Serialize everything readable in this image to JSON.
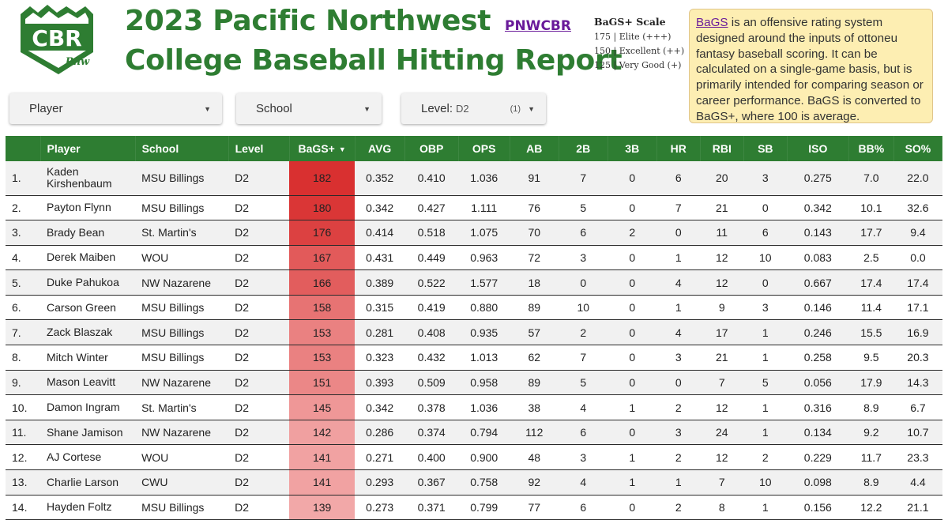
{
  "header": {
    "title_line1": "2023 Pacific Northwest",
    "title_line2": "College Baseball Hitting Report",
    "link_text": "PNWCBR",
    "logo_text": "CBR",
    "logo_sub": "Pnw"
  },
  "scale": {
    "title": "BaGS+ Scale",
    "lines": [
      "175 | Elite (+++)",
      "150 | Excellent (++)",
      "125 | Very Good (+)"
    ]
  },
  "info": {
    "term": "BaGS",
    "text": " is an offensive rating system designed around the inputs of ottoneu fantasy baseball scoring. It can be calculated on a single-game basis, but is primarily intended for comparing season or career performance. BaGS is converted to BaGS+, where 100 is average."
  },
  "filters": {
    "player": "Player",
    "school": "School",
    "level_label": "Level:",
    "level_value": "D2",
    "level_count": "(1)"
  },
  "table": {
    "headers": [
      "",
      "Player",
      "School",
      "Level",
      "BaGS+",
      "AVG",
      "OBP",
      "OPS",
      "AB",
      "2B",
      "3B",
      "HR",
      "RBI",
      "SB",
      "ISO",
      "BB%",
      "SO%"
    ],
    "rows": [
      [
        "1.",
        "Kaden Kirshenbaum",
        "MSU Billings",
        "D2",
        "182",
        "0.352",
        "0.410",
        "1.036",
        "91",
        "7",
        "0",
        "6",
        "20",
        "3",
        "0.275",
        "7.0",
        "22.0"
      ],
      [
        "2.",
        "Payton Flynn",
        "MSU Billings",
        "D2",
        "180",
        "0.342",
        "0.427",
        "1.111",
        "76",
        "5",
        "0",
        "7",
        "21",
        "0",
        "0.342",
        "10.1",
        "32.6"
      ],
      [
        "3.",
        "Brady Bean",
        "St. Martin's",
        "D2",
        "176",
        "0.414",
        "0.518",
        "1.075",
        "70",
        "6",
        "2",
        "0",
        "11",
        "6",
        "0.143",
        "17.7",
        "9.4"
      ],
      [
        "4.",
        "Derek Maiben",
        "WOU",
        "D2",
        "167",
        "0.431",
        "0.449",
        "0.963",
        "72",
        "3",
        "0",
        "1",
        "12",
        "10",
        "0.083",
        "2.5",
        "0.0"
      ],
      [
        "5.",
        "Duke Pahukoa",
        "NW Nazarene",
        "D2",
        "166",
        "0.389",
        "0.522",
        "1.577",
        "18",
        "0",
        "0",
        "4",
        "12",
        "0",
        "0.667",
        "17.4",
        "17.4"
      ],
      [
        "6.",
        "Carson Green",
        "MSU Billings",
        "D2",
        "158",
        "0.315",
        "0.419",
        "0.880",
        "89",
        "10",
        "0",
        "1",
        "9",
        "3",
        "0.146",
        "11.4",
        "17.1"
      ],
      [
        "7.",
        "Zack Blaszak",
        "MSU Billings",
        "D2",
        "153",
        "0.281",
        "0.408",
        "0.935",
        "57",
        "2",
        "0",
        "4",
        "17",
        "1",
        "0.246",
        "15.5",
        "16.9"
      ],
      [
        "8.",
        "Mitch Winter",
        "MSU Billings",
        "D2",
        "153",
        "0.323",
        "0.432",
        "1.013",
        "62",
        "7",
        "0",
        "3",
        "21",
        "1",
        "0.258",
        "9.5",
        "20.3"
      ],
      [
        "9.",
        "Mason Leavitt",
        "NW Nazarene",
        "D2",
        "151",
        "0.393",
        "0.509",
        "0.958",
        "89",
        "5",
        "0",
        "0",
        "7",
        "5",
        "0.056",
        "17.9",
        "14.3"
      ],
      [
        "10.",
        "Damon Ingram",
        "St. Martin's",
        "D2",
        "145",
        "0.342",
        "0.378",
        "1.036",
        "38",
        "4",
        "1",
        "2",
        "12",
        "1",
        "0.316",
        "8.9",
        "6.7"
      ],
      [
        "11.",
        "Shane Jamison",
        "NW Nazarene",
        "D2",
        "142",
        "0.286",
        "0.374",
        "0.794",
        "112",
        "6",
        "0",
        "3",
        "24",
        "1",
        "0.134",
        "9.2",
        "10.7"
      ],
      [
        "12.",
        "AJ Cortese",
        "WOU",
        "D2",
        "141",
        "0.271",
        "0.400",
        "0.900",
        "48",
        "3",
        "1",
        "2",
        "12",
        "2",
        "0.229",
        "11.7",
        "23.3"
      ],
      [
        "13.",
        "Charlie Larson",
        "CWU",
        "D2",
        "141",
        "0.293",
        "0.367",
        "0.758",
        "92",
        "4",
        "1",
        "1",
        "7",
        "10",
        "0.098",
        "8.9",
        "4.4"
      ],
      [
        "14.",
        "Hayden Foltz",
        "MSU Billings",
        "D2",
        "139",
        "0.273",
        "0.371",
        "0.799",
        "77",
        "6",
        "0",
        "2",
        "8",
        "1",
        "0.156",
        "12.2",
        "21.1"
      ]
    ]
  },
  "colors": {
    "brand_green": "#2e7d32",
    "bags_max": "#d93030",
    "bags_min": "#f2a8a8",
    "info_bg": "#fdeeb2",
    "link_purple": "#6a1b9a"
  }
}
